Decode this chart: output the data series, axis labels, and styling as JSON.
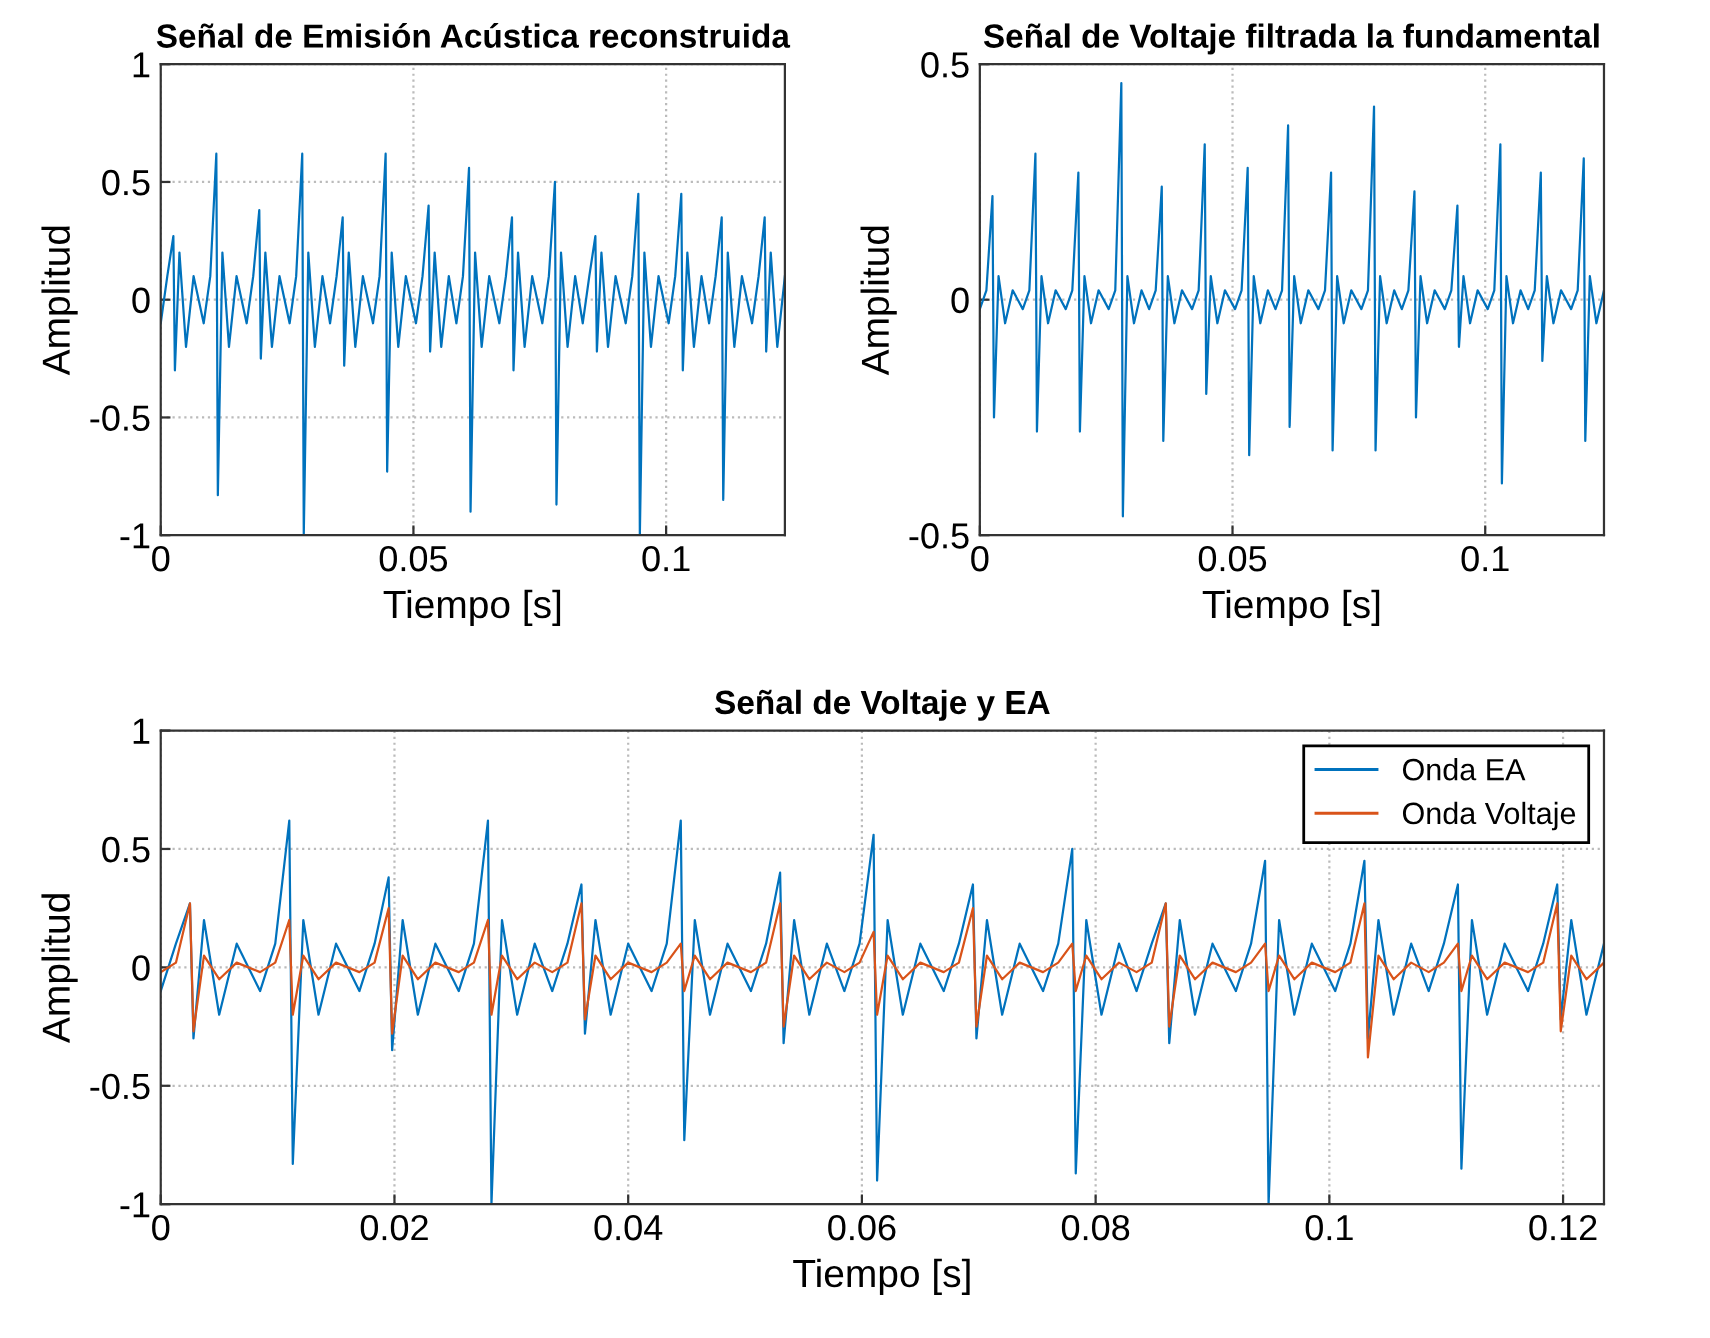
{
  "chart_data": [
    {
      "type": "line",
      "title": "Señal de Emisión Acústica reconstruida",
      "xlabel": "Tiempo [s]",
      "ylabel": "Amplitud",
      "xlim": [
        0,
        0.1235
      ],
      "xticks": [
        0,
        0.05,
        0.1
      ],
      "ylim": [
        -1,
        1
      ],
      "yticks": [
        -1,
        -0.5,
        0,
        0.5,
        1
      ],
      "grid": true,
      "legend": false,
      "series": [
        {
          "color": "#0072bd",
          "x": [
            0.0,
            0.0013,
            0.0025,
            0.0028,
            0.0037,
            0.005,
            0.0065,
            0.0085,
            0.0098,
            0.011,
            0.0113,
            0.0122,
            0.0135,
            0.015,
            0.017,
            0.0183,
            0.0195,
            0.0198,
            0.0207,
            0.022,
            0.0235,
            0.0255,
            0.0268,
            0.028,
            0.0283,
            0.0292,
            0.0305,
            0.032,
            0.0335,
            0.0348,
            0.036,
            0.0363,
            0.0372,
            0.0385,
            0.04,
            0.042,
            0.0433,
            0.0445,
            0.0448,
            0.0457,
            0.047,
            0.0485,
            0.0505,
            0.0518,
            0.053,
            0.0533,
            0.0542,
            0.0555,
            0.057,
            0.0585,
            0.0598,
            0.061,
            0.0613,
            0.0622,
            0.0635,
            0.065,
            0.067,
            0.0683,
            0.0695,
            0.0698,
            0.0707,
            0.072,
            0.0735,
            0.0755,
            0.0768,
            0.078,
            0.0783,
            0.0792,
            0.0805,
            0.082,
            0.0835,
            0.0848,
            0.086,
            0.0863,
            0.0872,
            0.0885,
            0.09,
            0.092,
            0.0933,
            0.0945,
            0.0948,
            0.0957,
            0.097,
            0.0985,
            0.1005,
            0.1018,
            0.103,
            0.1033,
            0.1042,
            0.1055,
            0.107,
            0.1085,
            0.1098,
            0.111,
            0.1113,
            0.1122,
            0.1135,
            0.115,
            0.117,
            0.1183,
            0.1195,
            0.1198,
            0.1207,
            0.122,
            0.1235
          ],
          "values": [
            -0.1,
            0.1,
            0.27,
            -0.3,
            0.2,
            -0.2,
            0.1,
            -0.1,
            0.1,
            0.62,
            -0.83,
            0.2,
            -0.2,
            0.1,
            -0.1,
            0.1,
            0.38,
            -0.25,
            0.2,
            -0.2,
            0.1,
            -0.1,
            0.1,
            0.62,
            -1.0,
            0.2,
            -0.2,
            0.1,
            -0.1,
            0.1,
            0.35,
            -0.28,
            0.2,
            -0.2,
            0.1,
            -0.1,
            0.1,
            0.62,
            -0.73,
            0.2,
            -0.2,
            0.1,
            -0.1,
            0.1,
            0.4,
            -0.22,
            0.2,
            -0.2,
            0.1,
            -0.1,
            0.1,
            0.56,
            -0.9,
            0.2,
            -0.2,
            0.1,
            -0.1,
            0.1,
            0.35,
            -0.3,
            0.2,
            -0.2,
            0.1,
            -0.1,
            0.1,
            0.5,
            -0.87,
            0.2,
            -0.2,
            0.1,
            -0.1,
            0.1,
            0.27,
            -0.22,
            0.2,
            -0.2,
            0.1,
            -0.1,
            0.1,
            0.45,
            -1.0,
            0.2,
            -0.2,
            0.1,
            -0.1,
            0.1,
            0.45,
            -0.3,
            0.2,
            -0.2,
            0.1,
            -0.1,
            0.1,
            0.35,
            -0.85,
            0.2,
            -0.2,
            0.1,
            -0.1,
            0.1,
            0.35,
            -0.22,
            0.2,
            -0.2,
            0.1
          ]
        }
      ]
    },
    {
      "type": "line",
      "title": "Señal de Voltaje filtrada la fundamental",
      "xlabel": "Tiempo [s]",
      "ylabel": "Amplitud",
      "xlim": [
        0,
        0.1235
      ],
      "xticks": [
        0,
        0.05,
        0.1
      ],
      "ylim": [
        -0.5,
        0.5
      ],
      "yticks": [
        -0.5,
        0,
        0.5
      ],
      "grid": true,
      "legend": false,
      "series": [
        {
          "color": "#0072bd",
          "x": [
            0.0,
            0.0013,
            0.0025,
            0.0028,
            0.0037,
            0.005,
            0.0065,
            0.0085,
            0.0098,
            0.011,
            0.0113,
            0.0122,
            0.0135,
            0.015,
            0.017,
            0.0183,
            0.0195,
            0.0198,
            0.0207,
            0.022,
            0.0235,
            0.0255,
            0.0268,
            0.028,
            0.0283,
            0.0292,
            0.0305,
            0.032,
            0.0335,
            0.0348,
            0.036,
            0.0363,
            0.0372,
            0.0385,
            0.04,
            0.042,
            0.0433,
            0.0445,
            0.0448,
            0.0457,
            0.047,
            0.0485,
            0.0505,
            0.0518,
            0.053,
            0.0533,
            0.0542,
            0.0555,
            0.057,
            0.0585,
            0.0598,
            0.061,
            0.0613,
            0.0622,
            0.0635,
            0.065,
            0.067,
            0.0683,
            0.0695,
            0.0698,
            0.0707,
            0.072,
            0.0735,
            0.0755,
            0.0768,
            0.078,
            0.0783,
            0.0792,
            0.0805,
            0.082,
            0.0835,
            0.0848,
            0.086,
            0.0863,
            0.0872,
            0.0885,
            0.09,
            0.092,
            0.0933,
            0.0945,
            0.0948,
            0.0957,
            0.097,
            0.0985,
            0.1005,
            0.1018,
            0.103,
            0.1033,
            0.1042,
            0.1055,
            0.107,
            0.1085,
            0.1098,
            0.111,
            0.1113,
            0.1122,
            0.1135,
            0.115,
            0.117,
            0.1183,
            0.1195,
            0.1198,
            0.1207,
            0.122,
            0.1235
          ],
          "values": [
            -0.02,
            0.02,
            0.22,
            -0.25,
            0.05,
            -0.05,
            0.02,
            -0.02,
            0.02,
            0.31,
            -0.28,
            0.05,
            -0.05,
            0.02,
            -0.02,
            0.02,
            0.27,
            -0.28,
            0.05,
            -0.05,
            0.02,
            -0.02,
            0.02,
            0.46,
            -0.46,
            0.05,
            -0.05,
            0.02,
            -0.02,
            0.02,
            0.24,
            -0.3,
            0.05,
            -0.05,
            0.02,
            -0.02,
            0.02,
            0.33,
            -0.2,
            0.05,
            -0.05,
            0.02,
            -0.02,
            0.02,
            0.28,
            -0.33,
            0.05,
            -0.05,
            0.02,
            -0.02,
            0.02,
            0.37,
            -0.27,
            0.05,
            -0.05,
            0.02,
            -0.02,
            0.02,
            0.27,
            -0.32,
            0.05,
            -0.05,
            0.02,
            -0.02,
            0.02,
            0.41,
            -0.32,
            0.05,
            -0.05,
            0.02,
            -0.02,
            0.02,
            0.23,
            -0.25,
            0.05,
            -0.05,
            0.02,
            -0.02,
            0.02,
            0.2,
            -0.1,
            0.05,
            -0.05,
            0.02,
            -0.02,
            0.02,
            0.33,
            -0.39,
            0.05,
            -0.05,
            0.02,
            -0.02,
            0.02,
            0.27,
            -0.13,
            0.05,
            -0.05,
            0.02,
            -0.02,
            0.02,
            0.3,
            -0.3,
            0.05,
            -0.05,
            0.02
          ]
        }
      ]
    },
    {
      "type": "line",
      "title": "Señal de Voltaje y EA",
      "xlabel": "Tiempo [s]",
      "ylabel": "Amplitud",
      "xlim": [
        0,
        0.1235
      ],
      "xticks": [
        0,
        0.02,
        0.04,
        0.06,
        0.08,
        0.1,
        0.12
      ],
      "ylim": [
        -1,
        1
      ],
      "yticks": [
        -1,
        -0.5,
        0,
        0.5,
        1
      ],
      "grid": true,
      "legend": "top right",
      "series": [
        {
          "name": "Onda EA",
          "color": "#0072bd",
          "x": [
            0.0,
            0.0013,
            0.0025,
            0.0028,
            0.0037,
            0.005,
            0.0065,
            0.0085,
            0.0098,
            0.011,
            0.0113,
            0.0122,
            0.0135,
            0.015,
            0.017,
            0.0183,
            0.0195,
            0.0198,
            0.0207,
            0.022,
            0.0235,
            0.0255,
            0.0268,
            0.028,
            0.0283,
            0.0292,
            0.0305,
            0.032,
            0.0335,
            0.0348,
            0.036,
            0.0363,
            0.0372,
            0.0385,
            0.04,
            0.042,
            0.0433,
            0.0445,
            0.0448,
            0.0457,
            0.047,
            0.0485,
            0.0505,
            0.0518,
            0.053,
            0.0533,
            0.0542,
            0.0555,
            0.057,
            0.0585,
            0.0598,
            0.061,
            0.0613,
            0.0622,
            0.0635,
            0.065,
            0.067,
            0.0683,
            0.0695,
            0.0698,
            0.0707,
            0.072,
            0.0735,
            0.0755,
            0.0768,
            0.078,
            0.0783,
            0.0792,
            0.0805,
            0.082,
            0.0835,
            0.0848,
            0.086,
            0.0863,
            0.0872,
            0.0885,
            0.09,
            0.092,
            0.0933,
            0.0945,
            0.0948,
            0.0957,
            0.097,
            0.0985,
            0.1005,
            0.1018,
            0.103,
            0.1033,
            0.1042,
            0.1055,
            0.107,
            0.1085,
            0.1098,
            0.111,
            0.1113,
            0.1122,
            0.1135,
            0.115,
            0.117,
            0.1183,
            0.1195,
            0.1198,
            0.1207,
            0.122,
            0.1235
          ],
          "values": [
            -0.1,
            0.1,
            0.27,
            -0.3,
            0.2,
            -0.2,
            0.1,
            -0.1,
            0.1,
            0.62,
            -0.83,
            0.2,
            -0.2,
            0.1,
            -0.1,
            0.1,
            0.38,
            -0.35,
            0.2,
            -0.2,
            0.1,
            -0.1,
            0.1,
            0.62,
            -1.0,
            0.2,
            -0.2,
            0.1,
            -0.1,
            0.1,
            0.35,
            -0.28,
            0.2,
            -0.2,
            0.1,
            -0.1,
            0.1,
            0.62,
            -0.73,
            0.2,
            -0.2,
            0.1,
            -0.1,
            0.1,
            0.4,
            -0.32,
            0.2,
            -0.2,
            0.1,
            -0.1,
            0.1,
            0.56,
            -0.9,
            0.2,
            -0.2,
            0.1,
            -0.1,
            0.1,
            0.35,
            -0.3,
            0.2,
            -0.2,
            0.1,
            -0.1,
            0.1,
            0.5,
            -0.87,
            0.2,
            -0.2,
            0.1,
            -0.1,
            0.1,
            0.27,
            -0.32,
            0.2,
            -0.2,
            0.1,
            -0.1,
            0.1,
            0.45,
            -1.0,
            0.2,
            -0.2,
            0.1,
            -0.1,
            0.1,
            0.45,
            -0.3,
            0.2,
            -0.2,
            0.1,
            -0.1,
            0.1,
            0.35,
            -0.85,
            0.2,
            -0.2,
            0.1,
            -0.1,
            0.1,
            0.35,
            -0.22,
            0.2,
            -0.2,
            0.1
          ]
        },
        {
          "name": "Onda Voltaje",
          "color": "#d95319",
          "x": [
            0.0,
            0.0013,
            0.0025,
            0.0028,
            0.0037,
            0.005,
            0.0065,
            0.0085,
            0.0098,
            0.011,
            0.0113,
            0.0122,
            0.0135,
            0.015,
            0.017,
            0.0183,
            0.0195,
            0.0198,
            0.0207,
            0.022,
            0.0235,
            0.0255,
            0.0268,
            0.028,
            0.0283,
            0.0292,
            0.0305,
            0.032,
            0.0335,
            0.0348,
            0.036,
            0.0363,
            0.0372,
            0.0385,
            0.04,
            0.042,
            0.0433,
            0.0445,
            0.0448,
            0.0457,
            0.047,
            0.0485,
            0.0505,
            0.0518,
            0.053,
            0.0533,
            0.0542,
            0.0555,
            0.057,
            0.0585,
            0.0598,
            0.061,
            0.0613,
            0.0622,
            0.0635,
            0.065,
            0.067,
            0.0683,
            0.0695,
            0.0698,
            0.0707,
            0.072,
            0.0735,
            0.0755,
            0.0768,
            0.078,
            0.0783,
            0.0792,
            0.0805,
            0.082,
            0.0835,
            0.0848,
            0.086,
            0.0863,
            0.0872,
            0.0885,
            0.09,
            0.092,
            0.0933,
            0.0945,
            0.0948,
            0.0957,
            0.097,
            0.0985,
            0.1005,
            0.1018,
            0.103,
            0.1033,
            0.1042,
            0.1055,
            0.107,
            0.1085,
            0.1098,
            0.111,
            0.1113,
            0.1122,
            0.1135,
            0.115,
            0.117,
            0.1183,
            0.1195,
            0.1198,
            0.1207,
            0.122,
            0.1235
          ],
          "values": [
            -0.02,
            0.02,
            0.27,
            -0.27,
            0.05,
            -0.05,
            0.02,
            -0.02,
            0.02,
            0.2,
            -0.2,
            0.05,
            -0.05,
            0.02,
            -0.02,
            0.02,
            0.25,
            -0.28,
            0.05,
            -0.05,
            0.02,
            -0.02,
            0.02,
            0.2,
            -0.2,
            0.05,
            -0.05,
            0.02,
            -0.02,
            0.02,
            0.27,
            -0.22,
            0.05,
            -0.05,
            0.02,
            -0.02,
            0.02,
            0.1,
            -0.1,
            0.05,
            -0.05,
            0.02,
            -0.02,
            0.02,
            0.27,
            -0.25,
            0.05,
            -0.05,
            0.02,
            -0.02,
            0.02,
            0.15,
            -0.2,
            0.05,
            -0.05,
            0.02,
            -0.02,
            0.02,
            0.25,
            -0.25,
            0.05,
            -0.05,
            0.02,
            -0.02,
            0.02,
            0.1,
            -0.1,
            0.05,
            -0.05,
            0.02,
            -0.02,
            0.02,
            0.27,
            -0.25,
            0.05,
            -0.05,
            0.02,
            -0.02,
            0.02,
            0.1,
            -0.1,
            0.05,
            -0.05,
            0.02,
            -0.02,
            0.02,
            0.27,
            -0.38,
            0.05,
            -0.05,
            0.02,
            -0.02,
            0.02,
            0.1,
            -0.1,
            0.05,
            -0.05,
            0.02,
            -0.02,
            0.02,
            0.27,
            -0.27,
            0.05,
            -0.05,
            0.02
          ]
        }
      ]
    }
  ]
}
